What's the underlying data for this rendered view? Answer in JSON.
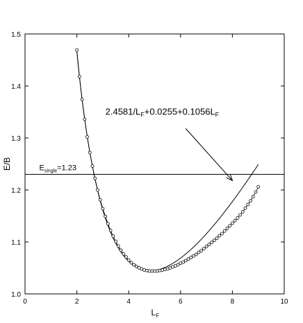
{
  "chart_data": {
    "type": "scatter",
    "xlabel": "L",
    "xlabel_sub": "F",
    "ylabel": "E/B",
    "xlim": [
      0,
      10
    ],
    "ylim": [
      1.0,
      1.5
    ],
    "xticks": [
      0,
      2,
      4,
      6,
      8,
      10
    ],
    "yticks": [
      1.0,
      1.1,
      1.2,
      1.3,
      1.4,
      1.5
    ],
    "ytick_labels": [
      "1.0",
      "1.1",
      "1.2",
      "1.3",
      "1.4",
      "1.5"
    ],
    "grid": false,
    "fit_formula": {
      "a": 2.4581,
      "b": 0.0255,
      "c": 0.1056,
      "parts": [
        "2.4581/L",
        "F",
        "+0.0255+0.1056L",
        "F"
      ]
    },
    "fit_range": [
      2.0,
      9.0
    ],
    "reference_line": {
      "y": 1.23,
      "label_main": "E",
      "label_sub": "single",
      "label_tail": "=1.23"
    },
    "arrow": {
      "from": [
        6.2,
        1.318
      ],
      "to": [
        8.0,
        1.218
      ]
    },
    "series": [
      {
        "marker": "open-circle",
        "x": [
          2.0,
          2.1,
          2.2,
          2.3,
          2.4,
          2.5,
          2.6,
          2.7,
          2.8,
          2.9,
          3.0,
          3.1,
          3.2,
          3.3,
          3.4,
          3.5,
          3.6,
          3.7,
          3.8,
          3.9,
          4.0,
          4.1,
          4.2,
          4.3,
          4.4,
          4.5,
          4.6,
          4.7,
          4.8,
          4.9,
          5.0,
          5.1,
          5.2,
          5.3,
          5.4,
          5.5,
          5.6,
          5.7,
          5.8,
          5.9,
          6.0,
          6.1,
          6.2,
          6.3,
          6.4,
          6.5,
          6.6,
          6.7,
          6.8,
          6.9,
          7.0,
          7.1,
          7.2,
          7.3,
          7.4,
          7.5,
          7.6,
          7.7,
          7.8,
          7.9,
          8.0,
          8.1,
          8.2,
          8.3,
          8.4,
          8.5,
          8.6,
          8.7,
          8.8,
          8.9,
          9.0
        ],
        "y": [
          1.469,
          1.418,
          1.374,
          1.336,
          1.302,
          1.272,
          1.246,
          1.222,
          1.2,
          1.181,
          1.164,
          1.149,
          1.135,
          1.122,
          1.111,
          1.101,
          1.092,
          1.084,
          1.077,
          1.071,
          1.065,
          1.06,
          1.056,
          1.053,
          1.05,
          1.048,
          1.046,
          1.045,
          1.044,
          1.044,
          1.044,
          1.044,
          1.045,
          1.046,
          1.047,
          1.048,
          1.05,
          1.052,
          1.054,
          1.056,
          1.059,
          1.061,
          1.064,
          1.067,
          1.07,
          1.073,
          1.076,
          1.08,
          1.083,
          1.087,
          1.091,
          1.095,
          1.099,
          1.103,
          1.107,
          1.112,
          1.116,
          1.121,
          1.126,
          1.131,
          1.136,
          1.141,
          1.146,
          1.152,
          1.158,
          1.165,
          1.172,
          1.179,
          1.187,
          1.196,
          1.206
        ]
      }
    ]
  }
}
